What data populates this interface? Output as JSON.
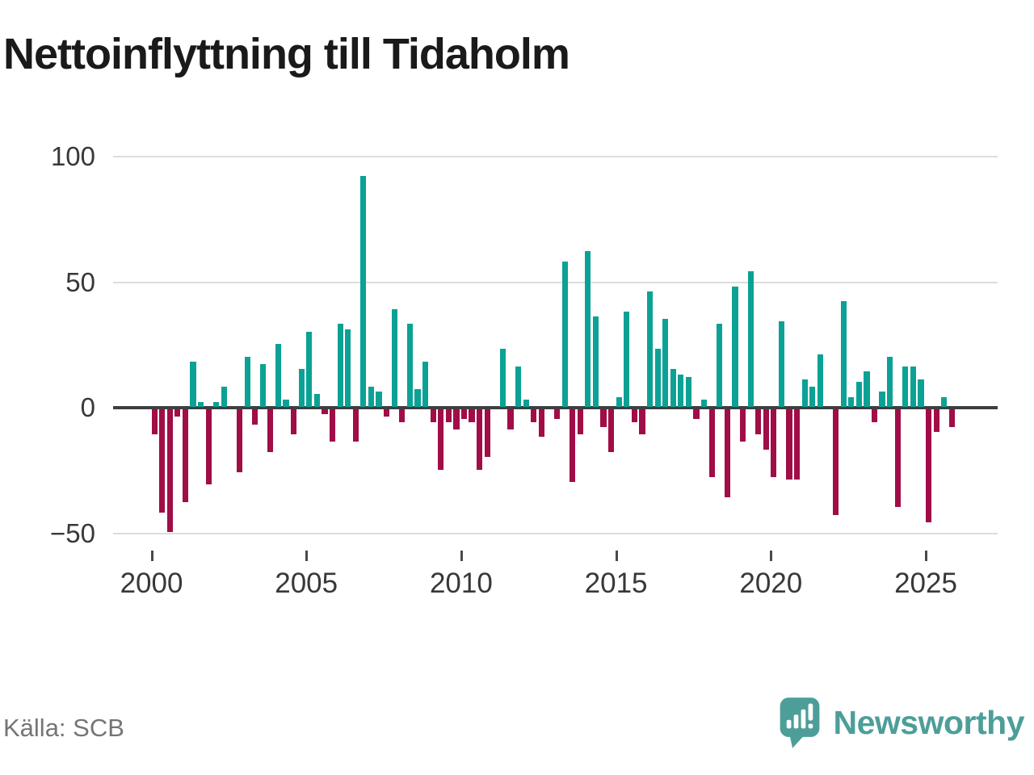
{
  "title": "Nettoinflyttning till Tidaholm",
  "source": "Källa: SCB",
  "branding": {
    "name": "Newsworthy",
    "color": "#4d9e99"
  },
  "chart_data": {
    "type": "bar",
    "title": "Nettoinflyttning till Tidaholm",
    "frequency": "quarterly",
    "x_start": "2000-Q1",
    "x_end": "2025-Q4",
    "x_tick_labels": [
      "2000",
      "2005",
      "2010",
      "2015",
      "2020",
      "2025"
    ],
    "y_ticks": [
      100,
      50,
      0,
      -50
    ],
    "ylim": [
      -55,
      105
    ],
    "grid": true,
    "legend": "none",
    "colors": {
      "positive": "#0ba295",
      "negative": "#a00d47"
    },
    "series": [
      {
        "name": "Nettoinflyttning",
        "values": [
          -10,
          -41,
          -49,
          -3,
          -37,
          18,
          2,
          -30,
          2,
          8,
          0,
          -25,
          20,
          -6,
          17,
          -17,
          25,
          3,
          -10,
          15,
          30,
          5,
          -2,
          -13,
          33,
          31,
          -13,
          92,
          8,
          6,
          -3,
          39,
          -5,
          33,
          7,
          18,
          -5,
          -24,
          -5,
          -8,
          -4,
          -5,
          -24,
          -19,
          0,
          23,
          -8,
          16,
          3,
          -5,
          -11,
          0,
          -4,
          58,
          -29,
          -10,
          62,
          36,
          -7,
          -17,
          4,
          38,
          -5,
          -10,
          46,
          23,
          35,
          15,
          13,
          12,
          -4,
          3,
          -27,
          33,
          -35,
          48,
          -13,
          54,
          -10,
          -16,
          -27,
          34,
          -28,
          -28,
          11,
          8,
          21,
          0,
          -42,
          42,
          4,
          10,
          14,
          -5,
          6,
          20,
          -39,
          16,
          16,
          11,
          -45,
          -9,
          4,
          -7
        ]
      }
    ]
  }
}
